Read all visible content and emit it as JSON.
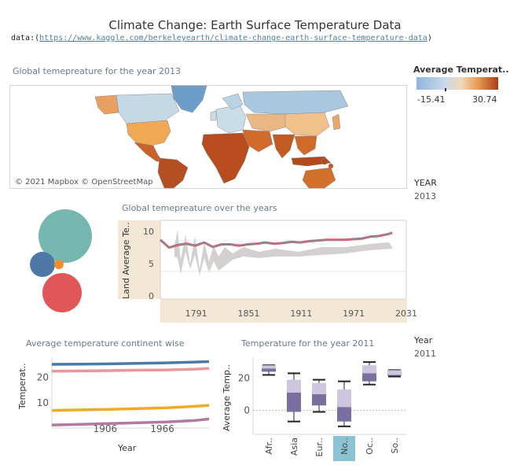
{
  "header": {
    "title": "Climate Change: Earth Surface Temperature Data",
    "source_prefix": "data:(",
    "source_link": "https://www.kaggle.com/berkeleyearth/climate-change-earth-surface-temperature-data",
    "source_suffix": ")"
  },
  "map": {
    "title": "Global temepreature for the year 2013",
    "attribution": "© 2021 Mapbox © OpenStreetMap",
    "legend_title": "Average Temperat..",
    "legend_min": "-15.41",
    "legend_max": "30.74"
  },
  "filters": {
    "year_label": "YEAR",
    "year_value": "2013",
    "year2_label": "Year",
    "year2_value": "2011"
  },
  "colors": {
    "bubble_teal": "#76b7b2",
    "bubble_blue": "#4e79a7",
    "bubble_orange": "#f28e2b",
    "bubble_red": "#e15759",
    "accent_highlight": "#8cc3d4",
    "panel_bg": "#f3e7d6"
  },
  "chart_data": [
    {
      "type": "bubble",
      "title": "",
      "series": [
        {
          "name": "",
          "value": 1.0,
          "color": "#76b7b2"
        },
        {
          "name": "",
          "value": 0.3,
          "color": "#4e79a7"
        },
        {
          "name": "",
          "value": 0.05,
          "color": "#f28e2b"
        },
        {
          "name": "",
          "value": 0.7,
          "color": "#e15759"
        }
      ]
    },
    {
      "type": "line",
      "title": "Global temepreature over the years",
      "ylabel": "Land Average Te..",
      "xlabel": "",
      "xlim": [
        1750,
        2031
      ],
      "ylim": [
        0,
        11
      ],
      "x_ticks": [
        "1791",
        "1851",
        "1911",
        "1971",
        "2031"
      ],
      "y_ticks": [
        "10",
        "5",
        "0"
      ],
      "x": [
        1750,
        1760,
        1770,
        1780,
        1790,
        1800,
        1810,
        1820,
        1830,
        1840,
        1850,
        1860,
        1870,
        1880,
        1890,
        1900,
        1910,
        1920,
        1930,
        1940,
        1950,
        1960,
        1970,
        1980,
        1990,
        2000,
        2010,
        2015
      ],
      "series": [
        {
          "name": "",
          "values": [
            8.7,
            7.5,
            7.9,
            8.1,
            7.8,
            8.3,
            7.6,
            8.0,
            8.0,
            7.8,
            8.0,
            8.1,
            8.3,
            8.1,
            8.2,
            8.4,
            8.3,
            8.5,
            8.6,
            8.7,
            8.7,
            8.7,
            8.8,
            8.9,
            9.2,
            9.3,
            9.6,
            9.8
          ]
        }
      ]
    },
    {
      "type": "line",
      "title": "Average temperature continent wise",
      "xlabel": "Year",
      "ylabel": "Temperat..",
      "xlim": [
        1850,
        2015
      ],
      "ylim": [
        0,
        28
      ],
      "x_ticks": [
        "1906",
        "1966"
      ],
      "y_ticks": [
        "20",
        "10"
      ],
      "x": [
        1850,
        1880,
        1910,
        1940,
        1970,
        2000,
        2015
      ],
      "series": [
        {
          "name": "",
          "values": [
            25.2,
            25.3,
            25.4,
            25.6,
            25.8,
            26.1,
            26.3
          ]
        },
        {
          "name": "",
          "values": [
            22.5,
            22.6,
            22.7,
            22.9,
            23.0,
            23.3,
            23.6
          ]
        },
        {
          "name": "",
          "values": [
            7.0,
            7.2,
            7.4,
            7.7,
            8.0,
            8.6,
            9.0
          ]
        },
        {
          "name": "",
          "values": [
            1.2,
            1.5,
            1.8,
            2.1,
            2.4,
            3.0,
            3.6
          ]
        }
      ]
    },
    {
      "type": "box",
      "title": "Temperature for the year 2011",
      "ylabel": "Average Temp..",
      "xlabel": "",
      "ylim": [
        -15,
        33
      ],
      "y_ticks": [
        "20",
        "0"
      ],
      "categories": [
        "Afr..",
        "Asia",
        "Eur..",
        "No..",
        "Oc..",
        "So.."
      ],
      "boxes": [
        {
          "min": 22,
          "q1": 24,
          "median": 26,
          "q3": 28,
          "max": 28
        },
        {
          "min": -7,
          "q1": -1,
          "median": 11,
          "q3": 19,
          "max": 23
        },
        {
          "min": -1,
          "q1": 3,
          "median": 10,
          "q3": 17,
          "max": 19
        },
        {
          "min": -10,
          "q1": -7,
          "median": 2,
          "q3": 13,
          "max": 18
        },
        {
          "min": 16,
          "q1": 18,
          "median": 23,
          "q3": 28,
          "max": 30
        },
        {
          "min": 21,
          "q1": 21.5,
          "median": 22,
          "q3": 25,
          "max": 25
        }
      ],
      "highlighted_category": "No.."
    }
  ]
}
